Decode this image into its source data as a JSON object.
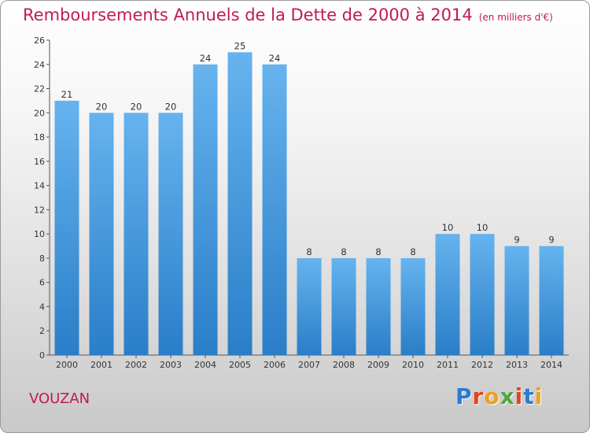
{
  "header": {
    "title": "Remboursements Annuels de la Dette de 2000 à 2014",
    "unit": "(en milliers d'€)"
  },
  "footer": {
    "commune": "VOUZAN",
    "brand_letters": [
      "P",
      "r",
      "o",
      "x",
      "i",
      "t",
      "i"
    ],
    "brand_colors": [
      "#2b7bd2",
      "#e9411f",
      "#f0a020",
      "#52a63a",
      "#e9411f",
      "#2b7bd2",
      "#f0a020"
    ]
  },
  "colors": {
    "bar_top": "#66b3ee",
    "bar_bottom": "#2a7ec8",
    "accent": "#c2185b"
  },
  "chart_data": {
    "type": "bar",
    "title": "Remboursements Annuels de la Dette de 2000 à 2014",
    "xlabel": "",
    "ylabel": "(en milliers d'€)",
    "categories": [
      "2000",
      "2001",
      "2002",
      "2003",
      "2004",
      "2005",
      "2006",
      "2007",
      "2008",
      "2009",
      "2010",
      "2011",
      "2012",
      "2013",
      "2014"
    ],
    "values": [
      21,
      20,
      20,
      20,
      24,
      25,
      24,
      8,
      8,
      8,
      8,
      10,
      10,
      9,
      9
    ],
    "ylim": [
      0,
      26
    ],
    "yticks": [
      0,
      2,
      4,
      6,
      8,
      10,
      12,
      14,
      16,
      18,
      20,
      22,
      24,
      26
    ],
    "grid": false
  }
}
